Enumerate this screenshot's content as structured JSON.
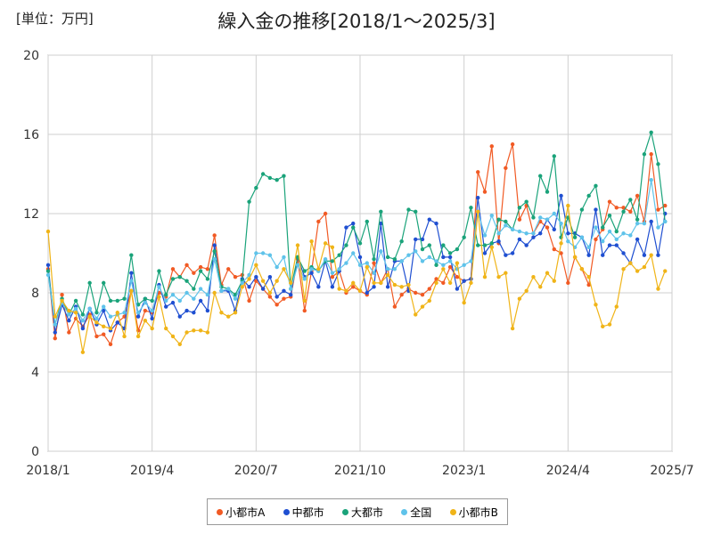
{
  "unit_label": "[単位：万円]",
  "chart_data": {
    "type": "line",
    "title": "繰入金の推移[2018/1～2025/3]",
    "x_start": "2018-01",
    "ylim": [
      0,
      20
    ],
    "yticks": [
      0,
      4,
      8,
      12,
      16,
      20
    ],
    "xticks": [
      "2018/1",
      "2019/4",
      "2020/7",
      "2021/10",
      "2023/1",
      "2024/4",
      "2025/7"
    ],
    "grid": true,
    "legend_position": "bottom",
    "series": [
      {
        "name": "小都市A",
        "color": "#f15a24",
        "values": [
          9.2,
          5.7,
          7.9,
          6.0,
          6.7,
          6.3,
          6.9,
          5.8,
          5.9,
          5.4,
          6.5,
          6.8,
          8.1,
          6.1,
          7.1,
          7.0,
          8.0,
          7.8,
          9.2,
          8.8,
          9.4,
          9.0,
          9.3,
          9.2,
          10.9,
          8.4,
          9.2,
          8.8,
          8.9,
          7.6,
          8.6,
          8.2,
          7.8,
          7.4,
          7.7,
          7.8,
          9.7,
          7.1,
          9.1,
          11.6,
          12.0,
          8.8,
          9.1,
          8.0,
          8.3,
          8.1,
          7.9,
          9.5,
          8.5,
          9.2,
          7.3,
          7.9,
          8.2,
          8.0,
          7.9,
          8.2,
          8.7,
          8.5,
          9.3,
          8.8,
          8.6,
          8.7,
          14.1,
          13.1,
          15.4,
          10.5,
          14.3,
          15.5,
          11.7,
          12.4,
          11.0,
          11.6,
          11.3,
          10.2,
          10.0,
          8.5,
          9.8,
          9.2,
          8.4,
          10.7,
          11.2,
          12.6,
          12.3,
          12.3,
          12.1,
          12.9,
          11.6,
          15.0,
          12.2,
          12.4
        ]
      },
      {
        "name": "中都市",
        "color": "#1f4fd1",
        "values": [
          9.4,
          6.0,
          7.4,
          6.6,
          7.3,
          6.2,
          7.2,
          6.4,
          7.1,
          6.1,
          6.5,
          6.2,
          9.0,
          6.8,
          7.7,
          6.7,
          8.4,
          7.3,
          7.5,
          6.8,
          7.1,
          7.0,
          7.6,
          7.1,
          10.4,
          8.1,
          8.1,
          7.1,
          8.7,
          8.3,
          8.8,
          8.2,
          8.8,
          7.8,
          8.1,
          7.9,
          9.8,
          8.8,
          9.0,
          8.3,
          9.6,
          8.3,
          9.1,
          11.3,
          11.5,
          9.8,
          8.0,
          8.3,
          11.5,
          8.3,
          9.6,
          9.6,
          8.1,
          10.7,
          10.7,
          11.7,
          11.5,
          9.8,
          9.8,
          8.2,
          8.6,
          8.7,
          12.8,
          10.0,
          10.5,
          10.6,
          9.9,
          10.0,
          10.7,
          10.4,
          10.8,
          11.0,
          11.7,
          11.2,
          12.9,
          11.0,
          11.0,
          10.8,
          9.9,
          12.2,
          9.9,
          10.4,
          10.4,
          10.0,
          9.5,
          10.7,
          9.9,
          11.6,
          9.9,
          12.0
        ]
      },
      {
        "name": "大都市",
        "color": "#1aa37a",
        "values": [
          9.1,
          6.4,
          7.7,
          6.9,
          7.6,
          6.9,
          8.5,
          7.0,
          8.5,
          7.6,
          7.6,
          7.7,
          9.9,
          7.4,
          7.7,
          7.6,
          9.1,
          7.9,
          8.7,
          8.8,
          8.6,
          8.2,
          9.1,
          8.7,
          10.1,
          8.3,
          8.2,
          7.9,
          8.6,
          12.6,
          13.3,
          14.0,
          13.8,
          13.7,
          13.9,
          8.2,
          9.8,
          9.1,
          9.3,
          9.1,
          9.6,
          9.6,
          9.9,
          10.4,
          11.3,
          10.5,
          11.6,
          9.7,
          12.1,
          9.8,
          9.7,
          10.6,
          12.2,
          12.1,
          10.2,
          10.4,
          9.4,
          10.4,
          10.0,
          10.2,
          10.8,
          12.3,
          10.4,
          10.4,
          10.5,
          11.7,
          11.6,
          11.2,
          12.3,
          12.6,
          11.8,
          13.9,
          13.1,
          14.9,
          10.8,
          11.8,
          10.8,
          12.2,
          12.9,
          13.4,
          11.3,
          11.9,
          11.1,
          12.1,
          12.7,
          11.7,
          15.0,
          16.1,
          14.5,
          11.6
        ]
      },
      {
        "name": "全国",
        "color": "#5fc3ea",
        "values": [
          8.9,
          6.4,
          7.5,
          6.9,
          7.2,
          6.6,
          7.2,
          6.7,
          7.3,
          6.8,
          6.9,
          7.0,
          8.6,
          7.0,
          7.5,
          7.1,
          8.3,
          7.6,
          7.9,
          7.6,
          8.0,
          7.7,
          8.2,
          7.9,
          9.7,
          8.1,
          8.2,
          7.7,
          8.5,
          8.9,
          10.0,
          10.0,
          9.9,
          9.3,
          9.8,
          8.2,
          9.4,
          8.7,
          9.2,
          9.1,
          9.7,
          9.0,
          9.2,
          9.5,
          10.0,
          9.4,
          9.5,
          9.0,
          10.1,
          9.2,
          9.2,
          9.6,
          9.9,
          10.1,
          9.6,
          9.8,
          9.6,
          9.4,
          9.6,
          9.2,
          9.4,
          9.6,
          12.1,
          10.9,
          11.9,
          11.0,
          11.4,
          11.2,
          11.1,
          11.0,
          11.0,
          11.8,
          11.7,
          12.0,
          11.5,
          10.6,
          10.3,
          10.8,
          10.3,
          11.3,
          10.6,
          11.1,
          10.7,
          11.0,
          10.9,
          11.5,
          11.5,
          13.7,
          11.3,
          11.6
        ]
      },
      {
        "name": "小都市B",
        "color": "#f0b418",
        "values": [
          11.1,
          6.8,
          7.6,
          7.1,
          7.0,
          5.0,
          6.8,
          6.5,
          6.3,
          6.2,
          7.0,
          5.8,
          8.1,
          5.8,
          6.6,
          6.2,
          7.8,
          6.2,
          5.8,
          5.4,
          6.0,
          6.1,
          6.1,
          6.0,
          8.0,
          7.0,
          6.8,
          7.0,
          8.3,
          8.7,
          9.4,
          8.6,
          8.0,
          8.6,
          9.2,
          8.5,
          10.4,
          7.6,
          10.6,
          9.2,
          10.5,
          10.3,
          8.2,
          8.1,
          8.5,
          8.1,
          9.3,
          8.5,
          8.5,
          8.9,
          8.4,
          8.3,
          8.4,
          6.9,
          7.3,
          7.6,
          8.5,
          9.2,
          8.5,
          9.5,
          7.5,
          8.5,
          12.1,
          8.8,
          10.3,
          8.8,
          9.0,
          6.2,
          7.7,
          8.1,
          8.8,
          8.3,
          9.0,
          8.6,
          10.5,
          12.4,
          9.8,
          9.2,
          8.8,
          7.4,
          6.3,
          6.4,
          7.3,
          9.2,
          9.5,
          9.1,
          9.3,
          9.9,
          8.2,
          9.1
        ]
      }
    ]
  }
}
